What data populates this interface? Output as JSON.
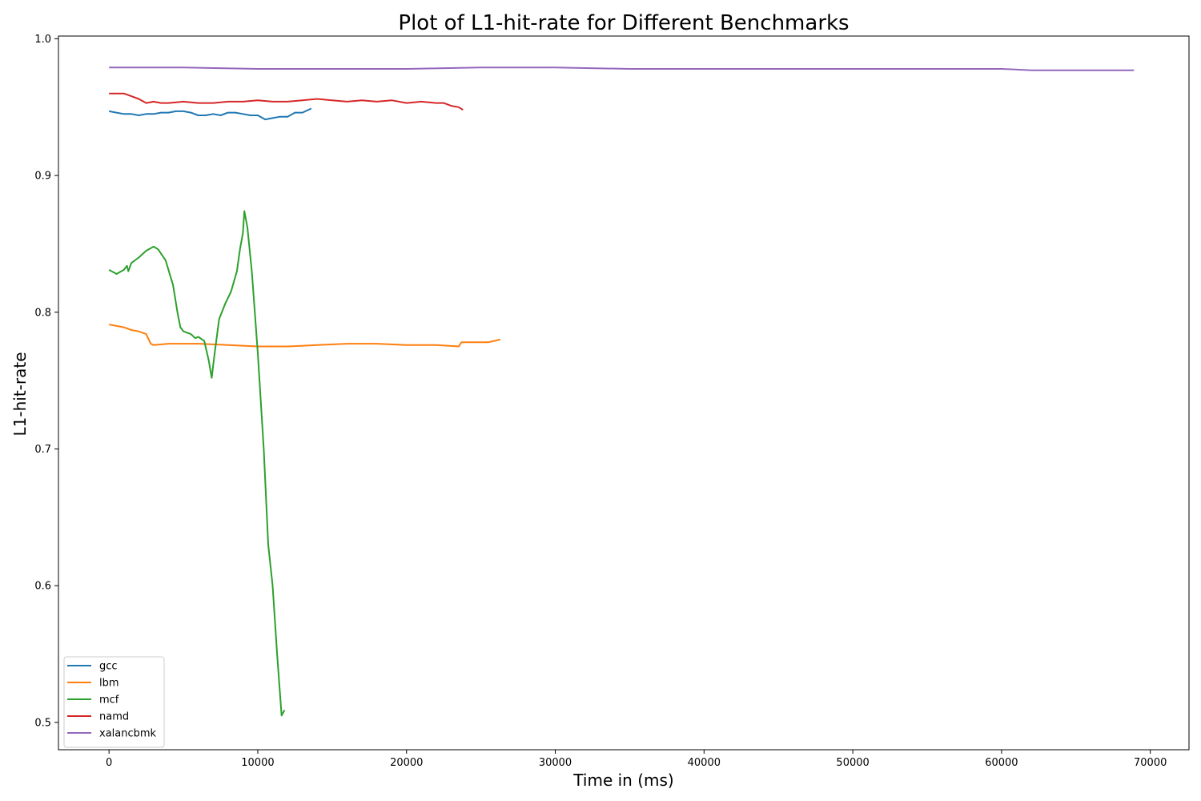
{
  "chart_data": {
    "type": "line",
    "title": "Plot of L1-hit-rate for Different Benchmarks",
    "xlabel": "Time in (ms)",
    "ylabel": "L1-hit-rate",
    "xlim": [
      -3400,
      72600
    ],
    "ylim": [
      0.48,
      1.002
    ],
    "xticks": [
      0,
      10000,
      20000,
      30000,
      40000,
      50000,
      60000,
      70000
    ],
    "xtick_labels": [
      "0",
      "10000",
      "20000",
      "30000",
      "40000",
      "50000",
      "60000",
      "70000"
    ],
    "yticks": [
      0.5,
      0.6,
      0.7,
      0.8,
      0.9,
      1.0
    ],
    "ytick_labels": [
      "0.5",
      "0.6",
      "0.7",
      "0.8",
      "0.9",
      "1.0"
    ],
    "grid": false,
    "legend_position": "lower-left",
    "series": [
      {
        "name": "gcc",
        "color": "#1f77b4",
        "x": [
          0,
          500,
          1000,
          1500,
          2000,
          2500,
          3000,
          3500,
          4000,
          4500,
          5000,
          5500,
          6000,
          6500,
          7000,
          7500,
          8000,
          8500,
          9000,
          9500,
          10000,
          10500,
          11000,
          11500,
          12000,
          12500,
          13000,
          13600
        ],
        "y": [
          0.947,
          0.946,
          0.945,
          0.945,
          0.944,
          0.945,
          0.945,
          0.946,
          0.946,
          0.947,
          0.947,
          0.946,
          0.944,
          0.944,
          0.945,
          0.944,
          0.946,
          0.946,
          0.945,
          0.944,
          0.944,
          0.941,
          0.942,
          0.943,
          0.943,
          0.946,
          0.946,
          0.949
        ]
      },
      {
        "name": "lbm",
        "color": "#ff7f0e",
        "x": [
          0,
          500,
          1000,
          1500,
          2000,
          2500,
          2800,
          3000,
          4000,
          6000,
          8000,
          10000,
          12000,
          14000,
          16000,
          18000,
          20000,
          22000,
          23500,
          23700,
          24500,
          25500,
          26300
        ],
        "y": [
          0.791,
          0.79,
          0.789,
          0.787,
          0.786,
          0.784,
          0.777,
          0.776,
          0.777,
          0.777,
          0.776,
          0.775,
          0.775,
          0.776,
          0.777,
          0.777,
          0.776,
          0.776,
          0.775,
          0.778,
          0.778,
          0.778,
          0.78
        ]
      },
      {
        "name": "mcf",
        "color": "#2ca02c",
        "x": [
          0,
          500,
          1000,
          1200,
          1300,
          1500,
          2000,
          2500,
          3000,
          3300,
          3800,
          4300,
          4600,
          4800,
          5000,
          5500,
          5800,
          6000,
          6400,
          6700,
          6900,
          7100,
          7400,
          7800,
          8200,
          8600,
          8800,
          9000,
          9100,
          9300,
          9600,
          10000,
          10400,
          10700,
          11000,
          11300,
          11600,
          11800
        ],
        "y": [
          0.831,
          0.828,
          0.831,
          0.834,
          0.83,
          0.836,
          0.84,
          0.845,
          0.848,
          0.846,
          0.838,
          0.82,
          0.8,
          0.789,
          0.786,
          0.784,
          0.781,
          0.782,
          0.779,
          0.765,
          0.752,
          0.77,
          0.795,
          0.806,
          0.815,
          0.83,
          0.846,
          0.858,
          0.874,
          0.862,
          0.83,
          0.77,
          0.7,
          0.63,
          0.6,
          0.55,
          0.505,
          0.509
        ]
      },
      {
        "name": "namd",
        "color": "#d62728",
        "x": [
          0,
          500,
          1000,
          1500,
          2000,
          2500,
          3000,
          3500,
          4000,
          5000,
          6000,
          7000,
          8000,
          9000,
          10000,
          11000,
          12000,
          13000,
          14000,
          15000,
          16000,
          17000,
          18000,
          19000,
          20000,
          21000,
          22000,
          22500,
          23000,
          23500,
          23800
        ],
        "y": [
          0.96,
          0.96,
          0.96,
          0.958,
          0.956,
          0.953,
          0.954,
          0.953,
          0.953,
          0.954,
          0.953,
          0.953,
          0.954,
          0.954,
          0.955,
          0.954,
          0.954,
          0.955,
          0.956,
          0.955,
          0.954,
          0.955,
          0.954,
          0.955,
          0.953,
          0.954,
          0.953,
          0.953,
          0.951,
          0.95,
          0.948
        ]
      },
      {
        "name": "xalancbmk",
        "color": "#9467bd",
        "x": [
          0,
          5000,
          10000,
          15000,
          20000,
          25000,
          30000,
          35000,
          40000,
          45000,
          50000,
          55000,
          60000,
          62000,
          65000,
          68900
        ],
        "y": [
          0.979,
          0.979,
          0.978,
          0.978,
          0.978,
          0.979,
          0.979,
          0.978,
          0.978,
          0.978,
          0.978,
          0.978,
          0.978,
          0.977,
          0.977,
          0.977
        ]
      }
    ]
  }
}
